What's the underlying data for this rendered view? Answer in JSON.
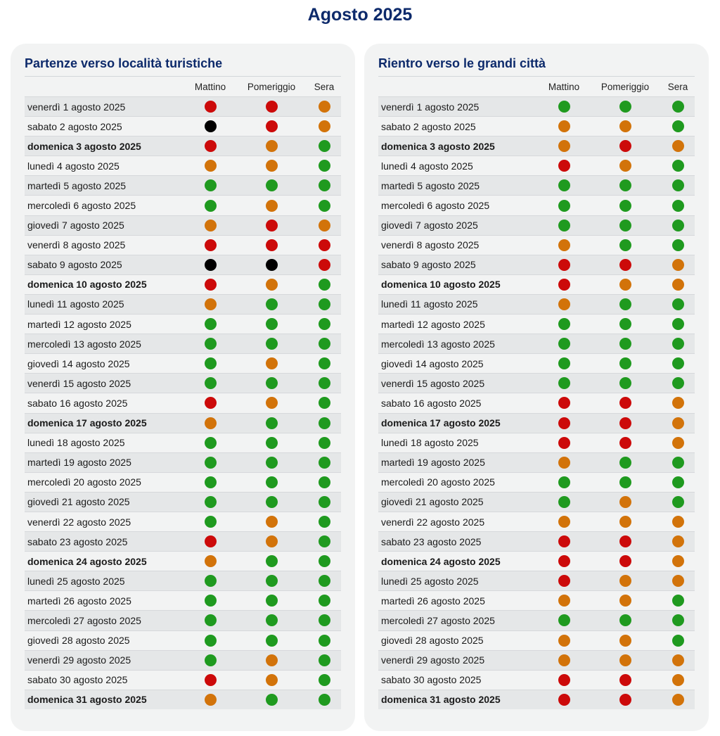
{
  "page_title": "Agosto 2025",
  "headers": {
    "morning": "Mattino",
    "afternoon": "Pomeriggio",
    "evening": "Sera"
  },
  "colors": {
    "green": "#1f9a1f",
    "orange": "#d2730a",
    "red": "#cc0a0a",
    "black": "#000000"
  },
  "departures": {
    "title": "Partenze verso località turistiche",
    "rows": [
      {
        "date": "venerdì 1 agosto 2025",
        "bold": false,
        "m": "red",
        "p": "red",
        "s": "orange"
      },
      {
        "date": "sabato 2 agosto 2025",
        "bold": false,
        "m": "black",
        "p": "red",
        "s": "orange"
      },
      {
        "date": "domenica 3 agosto 2025",
        "bold": true,
        "m": "red",
        "p": "orange",
        "s": "green"
      },
      {
        "date": "lunedì 4 agosto 2025",
        "bold": false,
        "m": "orange",
        "p": "orange",
        "s": "green"
      },
      {
        "date": "martedì 5 agosto 2025",
        "bold": false,
        "m": "green",
        "p": "green",
        "s": "green"
      },
      {
        "date": "mercoledì 6 agosto 2025",
        "bold": false,
        "m": "green",
        "p": "orange",
        "s": "green"
      },
      {
        "date": "giovedì 7 agosto 2025",
        "bold": false,
        "m": "orange",
        "p": "red",
        "s": "orange"
      },
      {
        "date": "venerdì 8 agosto 2025",
        "bold": false,
        "m": "red",
        "p": "red",
        "s": "red"
      },
      {
        "date": "sabato 9 agosto 2025",
        "bold": false,
        "m": "black",
        "p": "black",
        "s": "red"
      },
      {
        "date": "domenica 10 agosto 2025",
        "bold": true,
        "m": "red",
        "p": "orange",
        "s": "green"
      },
      {
        "date": "lunedì 11 agosto 2025",
        "bold": false,
        "m": "orange",
        "p": "green",
        "s": "green"
      },
      {
        "date": "martedì 12 agosto 2025",
        "bold": false,
        "m": "green",
        "p": "green",
        "s": "green"
      },
      {
        "date": "mercoledì 13 agosto 2025",
        "bold": false,
        "m": "green",
        "p": "green",
        "s": "green"
      },
      {
        "date": "giovedì 14 agosto 2025",
        "bold": false,
        "m": "green",
        "p": "orange",
        "s": "green"
      },
      {
        "date": "venerdì 15 agosto 2025",
        "bold": false,
        "m": "green",
        "p": "green",
        "s": "green"
      },
      {
        "date": "sabato 16 agosto 2025",
        "bold": false,
        "m": "red",
        "p": "orange",
        "s": "green"
      },
      {
        "date": "domenica 17 agosto 2025",
        "bold": true,
        "m": "orange",
        "p": "green",
        "s": "green"
      },
      {
        "date": "lunedì 18 agosto 2025",
        "bold": false,
        "m": "green",
        "p": "green",
        "s": "green"
      },
      {
        "date": "martedì 19 agosto 2025",
        "bold": false,
        "m": "green",
        "p": "green",
        "s": "green"
      },
      {
        "date": "mercoledì 20 agosto 2025",
        "bold": false,
        "m": "green",
        "p": "green",
        "s": "green"
      },
      {
        "date": "giovedì 21 agosto 2025",
        "bold": false,
        "m": "green",
        "p": "green",
        "s": "green"
      },
      {
        "date": "venerdì 22 agosto 2025",
        "bold": false,
        "m": "green",
        "p": "orange",
        "s": "green"
      },
      {
        "date": "sabato 23 agosto 2025",
        "bold": false,
        "m": "red",
        "p": "orange",
        "s": "green"
      },
      {
        "date": "domenica 24 agosto 2025",
        "bold": true,
        "m": "orange",
        "p": "green",
        "s": "green"
      },
      {
        "date": "lunedì 25 agosto 2025",
        "bold": false,
        "m": "green",
        "p": "green",
        "s": "green"
      },
      {
        "date": "martedì 26 agosto 2025",
        "bold": false,
        "m": "green",
        "p": "green",
        "s": "green"
      },
      {
        "date": "mercoledì 27 agosto 2025",
        "bold": false,
        "m": "green",
        "p": "green",
        "s": "green"
      },
      {
        "date": "giovedì 28 agosto 2025",
        "bold": false,
        "m": "green",
        "p": "green",
        "s": "green"
      },
      {
        "date": "venerdì 29 agosto 2025",
        "bold": false,
        "m": "green",
        "p": "orange",
        "s": "green"
      },
      {
        "date": "sabato 30 agosto 2025",
        "bold": false,
        "m": "red",
        "p": "orange",
        "s": "green"
      },
      {
        "date": "domenica 31 agosto 2025",
        "bold": true,
        "m": "orange",
        "p": "green",
        "s": "green"
      }
    ]
  },
  "returns": {
    "title": "Rientro verso le grandi città",
    "rows": [
      {
        "date": "venerdì 1 agosto 2025",
        "bold": false,
        "m": "green",
        "p": "green",
        "s": "green"
      },
      {
        "date": "sabato 2 agosto 2025",
        "bold": false,
        "m": "orange",
        "p": "orange",
        "s": "green"
      },
      {
        "date": "domenica 3 agosto 2025",
        "bold": true,
        "m": "orange",
        "p": "red",
        "s": "orange"
      },
      {
        "date": "lunedì 4 agosto 2025",
        "bold": false,
        "m": "red",
        "p": "orange",
        "s": "green"
      },
      {
        "date": "martedì 5 agosto 2025",
        "bold": false,
        "m": "green",
        "p": "green",
        "s": "green"
      },
      {
        "date": "mercoledì 6 agosto 2025",
        "bold": false,
        "m": "green",
        "p": "green",
        "s": "green"
      },
      {
        "date": "giovedì 7 agosto 2025",
        "bold": false,
        "m": "green",
        "p": "green",
        "s": "green"
      },
      {
        "date": "venerdì 8 agosto 2025",
        "bold": false,
        "m": "orange",
        "p": "green",
        "s": "green"
      },
      {
        "date": "sabato 9 agosto 2025",
        "bold": false,
        "m": "red",
        "p": "red",
        "s": "orange"
      },
      {
        "date": "domenica 10 agosto 2025",
        "bold": true,
        "m": "red",
        "p": "orange",
        "s": "orange"
      },
      {
        "date": "lunedì 11 agosto 2025",
        "bold": false,
        "m": "orange",
        "p": "green",
        "s": "green"
      },
      {
        "date": "martedì 12 agosto 2025",
        "bold": false,
        "m": "green",
        "p": "green",
        "s": "green"
      },
      {
        "date": "mercoledì 13 agosto 2025",
        "bold": false,
        "m": "green",
        "p": "green",
        "s": "green"
      },
      {
        "date": "giovedì 14 agosto 2025",
        "bold": false,
        "m": "green",
        "p": "green",
        "s": "green"
      },
      {
        "date": "venerdì 15 agosto 2025",
        "bold": false,
        "m": "green",
        "p": "green",
        "s": "green"
      },
      {
        "date": "sabato 16 agosto 2025",
        "bold": false,
        "m": "red",
        "p": "red",
        "s": "orange"
      },
      {
        "date": "domenica 17 agosto 2025",
        "bold": true,
        "m": "red",
        "p": "red",
        "s": "orange"
      },
      {
        "date": "lunedì 18 agosto 2025",
        "bold": false,
        "m": "red",
        "p": "red",
        "s": "orange"
      },
      {
        "date": "martedì 19 agosto 2025",
        "bold": false,
        "m": "orange",
        "p": "green",
        "s": "green"
      },
      {
        "date": "mercoledì 20 agosto 2025",
        "bold": false,
        "m": "green",
        "p": "green",
        "s": "green"
      },
      {
        "date": "giovedì 21 agosto 2025",
        "bold": false,
        "m": "green",
        "p": "orange",
        "s": "green"
      },
      {
        "date": "venerdì 22 agosto 2025",
        "bold": false,
        "m": "orange",
        "p": "orange",
        "s": "orange"
      },
      {
        "date": "sabato 23 agosto 2025",
        "bold": false,
        "m": "red",
        "p": "red",
        "s": "orange"
      },
      {
        "date": "domenica 24 agosto 2025",
        "bold": true,
        "m": "red",
        "p": "red",
        "s": "orange"
      },
      {
        "date": "lunedì 25 agosto 2025",
        "bold": false,
        "m": "red",
        "p": "orange",
        "s": "orange"
      },
      {
        "date": "martedì 26 agosto 2025",
        "bold": false,
        "m": "orange",
        "p": "orange",
        "s": "green"
      },
      {
        "date": "mercoledì 27 agosto 2025",
        "bold": false,
        "m": "green",
        "p": "green",
        "s": "green"
      },
      {
        "date": "giovedì 28 agosto 2025",
        "bold": false,
        "m": "orange",
        "p": "orange",
        "s": "green"
      },
      {
        "date": "venerdì 29 agosto 2025",
        "bold": false,
        "m": "orange",
        "p": "orange",
        "s": "orange"
      },
      {
        "date": "sabato 30 agosto 2025",
        "bold": false,
        "m": "red",
        "p": "red",
        "s": "orange"
      },
      {
        "date": "domenica 31 agosto 2025",
        "bold": true,
        "m": "red",
        "p": "red",
        "s": "orange"
      }
    ]
  }
}
